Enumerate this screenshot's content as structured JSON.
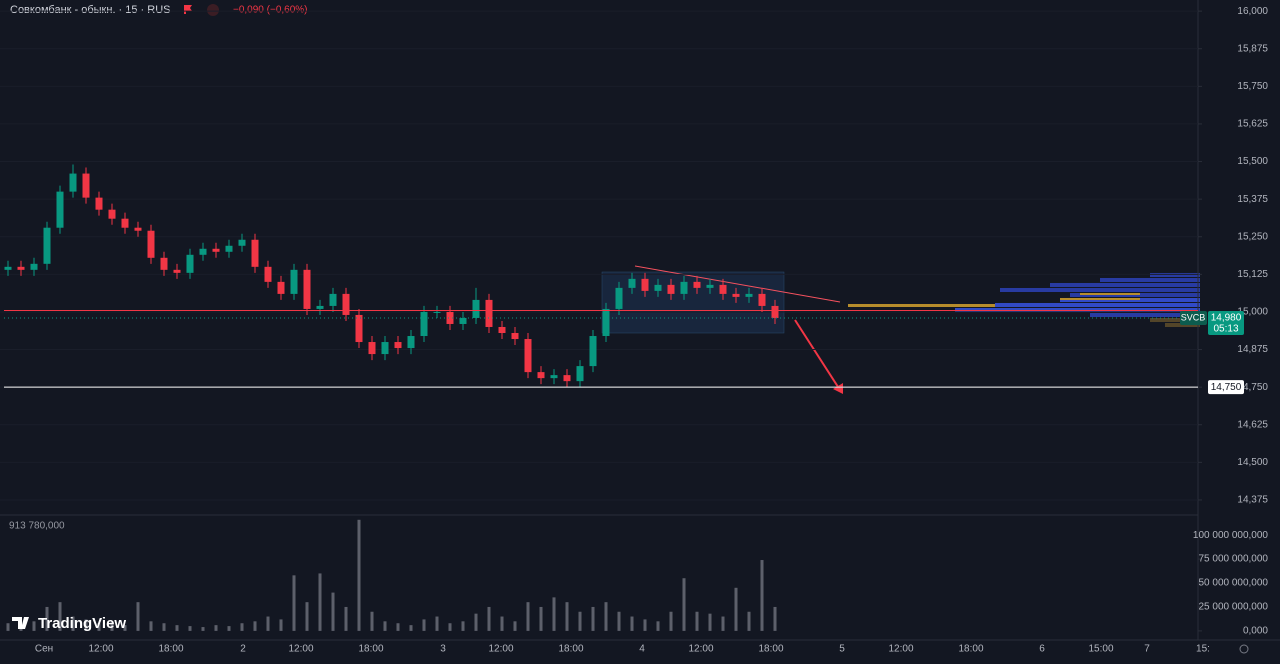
{
  "chart_data": [
    {
      "type": "candlestick",
      "title": "Совкомбанк - обыкн. · 15 · RUS",
      "change": "−0,090 (−0,60%)",
      "symbol": "SVCB",
      "countdown": "05:13",
      "last_price": {
        "value": 14.98,
        "label": "14,980"
      },
      "up_color": "#089981",
      "down_color": "#f23645",
      "grid": true,
      "ylim": [
        14.325,
        16.037
      ],
      "yticks": [
        {
          "value": 16.0,
          "label": "16,000"
        },
        {
          "value": 15.875,
          "label": "15,875"
        },
        {
          "value": 15.75,
          "label": "15,750"
        },
        {
          "value": 15.625,
          "label": "15,625"
        },
        {
          "value": 15.5,
          "label": "15,500"
        },
        {
          "value": 15.375,
          "label": "15,375"
        },
        {
          "value": 15.25,
          "label": "15,250"
        },
        {
          "value": 15.125,
          "label": "15,125"
        },
        {
          "value": 15.0,
          "label": "15,000"
        },
        {
          "value": 14.875,
          "label": "14,875"
        },
        {
          "value": 14.75,
          "label": "14,750"
        },
        {
          "value": 14.625,
          "label": "14,625"
        },
        {
          "value": 14.5,
          "label": "14,500"
        },
        {
          "value": 14.375,
          "label": "14,375"
        }
      ],
      "levels": [
        {
          "value": 15.005,
          "color": "#f23645"
        },
        {
          "value": 14.75,
          "label": "14,750",
          "color": "#ffffff"
        }
      ],
      "open": [
        15.14,
        15.15,
        15.14,
        15.16,
        15.28,
        15.4,
        15.46,
        15.38,
        15.34,
        15.31,
        15.28,
        15.27,
        15.18,
        15.14,
        15.13,
        15.19,
        15.21,
        15.2,
        15.22,
        15.24,
        15.15,
        15.1,
        15.06,
        15.14,
        15.01,
        15.02,
        15.06,
        14.99,
        14.9,
        14.86,
        14.9,
        14.88,
        14.92,
        15.0,
        15.0,
        14.96,
        14.98,
        15.04,
        14.95,
        14.93,
        14.91,
        14.8,
        14.78,
        14.79,
        14.77,
        14.82,
        14.92,
        15.01,
        15.08,
        15.11,
        15.07,
        15.09,
        15.06,
        15.1,
        15.08,
        15.09,
        15.06,
        15.05,
        15.06,
        15.02
      ],
      "high": [
        15.17,
        15.17,
        15.18,
        15.3,
        15.42,
        15.49,
        15.48,
        15.4,
        15.36,
        15.33,
        15.3,
        15.29,
        15.2,
        15.16,
        15.21,
        15.23,
        15.23,
        15.24,
        15.26,
        15.26,
        15.17,
        15.12,
        15.16,
        15.16,
        15.04,
        15.08,
        15.08,
        15.01,
        14.92,
        14.92,
        14.92,
        14.94,
        15.02,
        15.02,
        15.02,
        15.0,
        15.08,
        15.06,
        14.97,
        14.95,
        14.93,
        14.82,
        14.81,
        14.81,
        14.84,
        14.94,
        15.03,
        15.1,
        15.13,
        15.13,
        15.11,
        15.11,
        15.12,
        15.12,
        15.11,
        15.11,
        15.08,
        15.08,
        15.08,
        15.04
      ],
      "low": [
        15.12,
        15.12,
        15.12,
        15.14,
        15.26,
        15.38,
        15.36,
        15.32,
        15.29,
        15.26,
        15.25,
        15.16,
        15.12,
        15.11,
        15.11,
        15.17,
        15.18,
        15.18,
        15.2,
        15.13,
        15.08,
        15.04,
        15.04,
        14.99,
        14.99,
        15.0,
        14.97,
        14.88,
        14.84,
        14.84,
        14.86,
        14.86,
        14.9,
        14.98,
        14.94,
        14.94,
        14.96,
        14.93,
        14.91,
        14.89,
        14.78,
        14.76,
        14.76,
        14.75,
        14.75,
        14.8,
        14.9,
        14.99,
        15.06,
        15.05,
        15.05,
        15.04,
        15.04,
        15.06,
        15.06,
        15.04,
        15.03,
        15.03,
        15.0,
        14.96
      ],
      "close": [
        15.15,
        15.14,
        15.16,
        15.28,
        15.4,
        15.46,
        15.38,
        15.34,
        15.31,
        15.28,
        15.27,
        15.18,
        15.14,
        15.13,
        15.19,
        15.21,
        15.2,
        15.22,
        15.24,
        15.15,
        15.1,
        15.06,
        15.14,
        15.01,
        15.02,
        15.06,
        14.99,
        14.9,
        14.86,
        14.9,
        14.88,
        14.92,
        15.0,
        15.0,
        14.96,
        14.98,
        15.04,
        14.95,
        14.93,
        14.91,
        14.8,
        14.78,
        14.79,
        14.77,
        14.82,
        14.92,
        15.01,
        15.08,
        15.11,
        15.07,
        15.09,
        15.06,
        15.1,
        15.08,
        15.09,
        15.06,
        15.05,
        15.06,
        15.02,
        14.98
      ]
    },
    {
      "type": "bar",
      "legend_value": "913 780,000",
      "color": "#5d606b",
      "ylim": [
        -9500000000,
        121000000000
      ],
      "yticks": [
        {
          "value": 0,
          "label": "0,000"
        },
        {
          "value": 25000000000,
          "label": "25 000 000,000"
        },
        {
          "value": 50000000000,
          "label": "50 000 000,000"
        },
        {
          "value": 75000000000,
          "label": "75 000 000,000"
        },
        {
          "value": 100000000000,
          "label": "100 000 000,000"
        }
      ],
      "values": [
        8000000000.0,
        6000000000.0,
        10000000000.0,
        25000000000.0,
        30000000000.0,
        15000000000.0,
        12000000000.0,
        8000000000.0,
        10000000000.0,
        6000000000.0,
        30000000000.0,
        10000000000.0,
        8000000000.0,
        6000000000.0,
        5000000000.0,
        4000000000.0,
        6000000000.0,
        5000000000.0,
        8000000000.0,
        10000000000.0,
        15000000000.0,
        12000000000.0,
        58000000000.0,
        30000000000.0,
        60000000000.0,
        40000000000.0,
        25000000000.0,
        116000000000.0,
        20000000000.0,
        10000000000.0,
        8000000000.0,
        6000000000.0,
        12000000000.0,
        15000000000.0,
        8000000000.0,
        10000000000.0,
        18000000000.0,
        25000000000.0,
        15000000000.0,
        10000000000.0,
        30000000000.0,
        25000000000.0,
        35000000000.0,
        30000000000.0,
        20000000000.0,
        25000000000.0,
        30000000000.0,
        20000000000.0,
        15000000000.0,
        12000000000.0,
        10000000000.0,
        20000000000.0,
        55000000000.0,
        20000000000.0,
        18000000000.0,
        15000000000.0,
        45000000000.0,
        20000000000.0,
        74000000000.0,
        25000000000.0
      ]
    }
  ],
  "time_axis": {
    "labels": [
      "Сен",
      "12:00",
      "18:00",
      "2",
      "12:00",
      "18:00",
      "3",
      "12:00",
      "18:00",
      "4",
      "12:00",
      "18:00",
      "5",
      "12:00",
      "18:00",
      "6",
      "15:00",
      "7",
      "15:"
    ]
  },
  "branding": "TradingView"
}
